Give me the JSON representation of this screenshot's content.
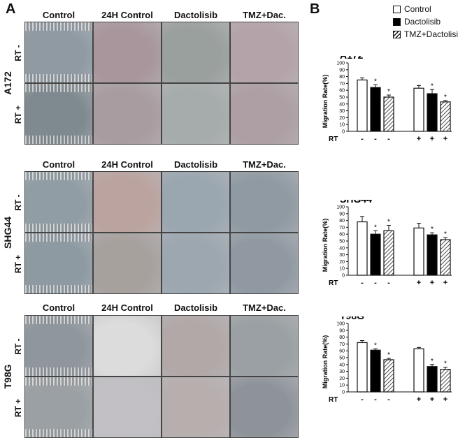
{
  "panels": {
    "a": "A",
    "b": "B"
  },
  "column_headers": [
    [
      "Control",
      "24H Control",
      "Dactolisib",
      "TMZ+Dac."
    ],
    [
      "Control",
      "24H Control",
      "Dactolisib",
      "TMZ+Dac."
    ],
    [
      "Control",
      "24H Control",
      "Dactolisib",
      "TMZ+Dac."
    ]
  ],
  "cell_lines": [
    "A172",
    "SHG44",
    "T98G"
  ],
  "rt_rows": [
    "RT -",
    "RT +"
  ],
  "micro_colors": [
    [
      "#8f9aa3",
      "#a8969c",
      "#9aa09e",
      "#b4a3a8",
      "#7e8a90",
      "#a89ca0",
      "#a6acab",
      "#ad9fa4"
    ],
    [
      "#909da4",
      "#bba39f",
      "#9aa6b0",
      "#8f9aa2",
      "#8d9aa2",
      "#a7a19e",
      "#9ca7b0",
      "#9099a2"
    ],
    [
      "#8f979d",
      "#dcdcdc",
      "#b2a8a8",
      "#9aa0a3",
      "#9aa0a4",
      "#c2c0c4",
      "#b7aeae",
      "#8e939a"
    ]
  ],
  "legend": [
    {
      "label": "Control",
      "fill": "white"
    },
    {
      "label": "Dactolisib",
      "fill": "black"
    },
    {
      "label": "TMZ+Dactolisib",
      "fill": "hatch"
    }
  ],
  "colors": {
    "bar_stroke": "#111111",
    "black_fill": "#000000"
  },
  "chart_data": [
    {
      "type": "bar",
      "title": "A172",
      "ylabel": "Migration Rate(%)",
      "ylim": [
        0,
        100
      ],
      "yticks": [
        "0",
        "10",
        "20",
        "30",
        "40",
        "50",
        "60",
        "70",
        "80",
        "90",
        "100"
      ],
      "rt_label": "RT",
      "rt_signs": [
        "-",
        "-",
        "-",
        "+",
        "+",
        "+"
      ],
      "series": [
        {
          "name": "Control",
          "values": [
            75,
            63
          ]
        },
        {
          "name": "Dactolisib",
          "values": [
            64,
            55
          ]
        },
        {
          "name": "TMZ+Dactolisib",
          "values": [
            50,
            43
          ]
        }
      ],
      "errors": [
        [
          3,
          4
        ],
        [
          4,
          6
        ],
        [
          3,
          2
        ]
      ],
      "significance": [
        [
          "",
          ""
        ],
        [
          "*",
          "*"
        ],
        [
          "*",
          "*"
        ]
      ]
    },
    {
      "type": "bar",
      "title": "SHG44",
      "ylabel": "Migration Rate(%)",
      "ylim": [
        0,
        100
      ],
      "yticks": [
        "0",
        "10",
        "20",
        "30",
        "40",
        "50",
        "60",
        "70",
        "80",
        "90",
        "100"
      ],
      "rt_label": "RT",
      "rt_signs": [
        "-",
        "-",
        "-",
        "+",
        "+",
        "+"
      ],
      "series": [
        {
          "name": "Control",
          "values": [
            78,
            69
          ]
        },
        {
          "name": "Dactolisib",
          "values": [
            60,
            59
          ]
        },
        {
          "name": "TMZ+Dactolisib",
          "values": [
            65,
            52
          ]
        }
      ],
      "errors": [
        [
          8,
          7
        ],
        [
          5,
          3
        ],
        [
          8,
          3
        ]
      ],
      "significance": [
        [
          "",
          ""
        ],
        [
          "*",
          "*"
        ],
        [
          "*",
          "*"
        ]
      ]
    },
    {
      "type": "bar",
      "title": "T98G",
      "ylabel": "Migration Rate(%)",
      "ylim": [
        0,
        100
      ],
      "yticks": [
        "0",
        "10",
        "20",
        "30",
        "40",
        "50",
        "60",
        "70",
        "80",
        "90",
        "100"
      ],
      "rt_label": "RT",
      "rt_signs": [
        "-",
        "-",
        "-",
        "+",
        "+",
        "+"
      ],
      "series": [
        {
          "name": "Control",
          "values": [
            72,
            63
          ]
        },
        {
          "name": "Dactolisib",
          "values": [
            61,
            37
          ]
        },
        {
          "name": "TMZ+Dactolisib",
          "values": [
            47,
            33
          ]
        }
      ],
      "errors": [
        [
          3,
          2
        ],
        [
          2,
          3
        ],
        [
          2,
          3
        ]
      ],
      "significance": [
        [
          "",
          ""
        ],
        [
          "*",
          "*"
        ],
        [
          "*",
          "*"
        ]
      ]
    }
  ]
}
